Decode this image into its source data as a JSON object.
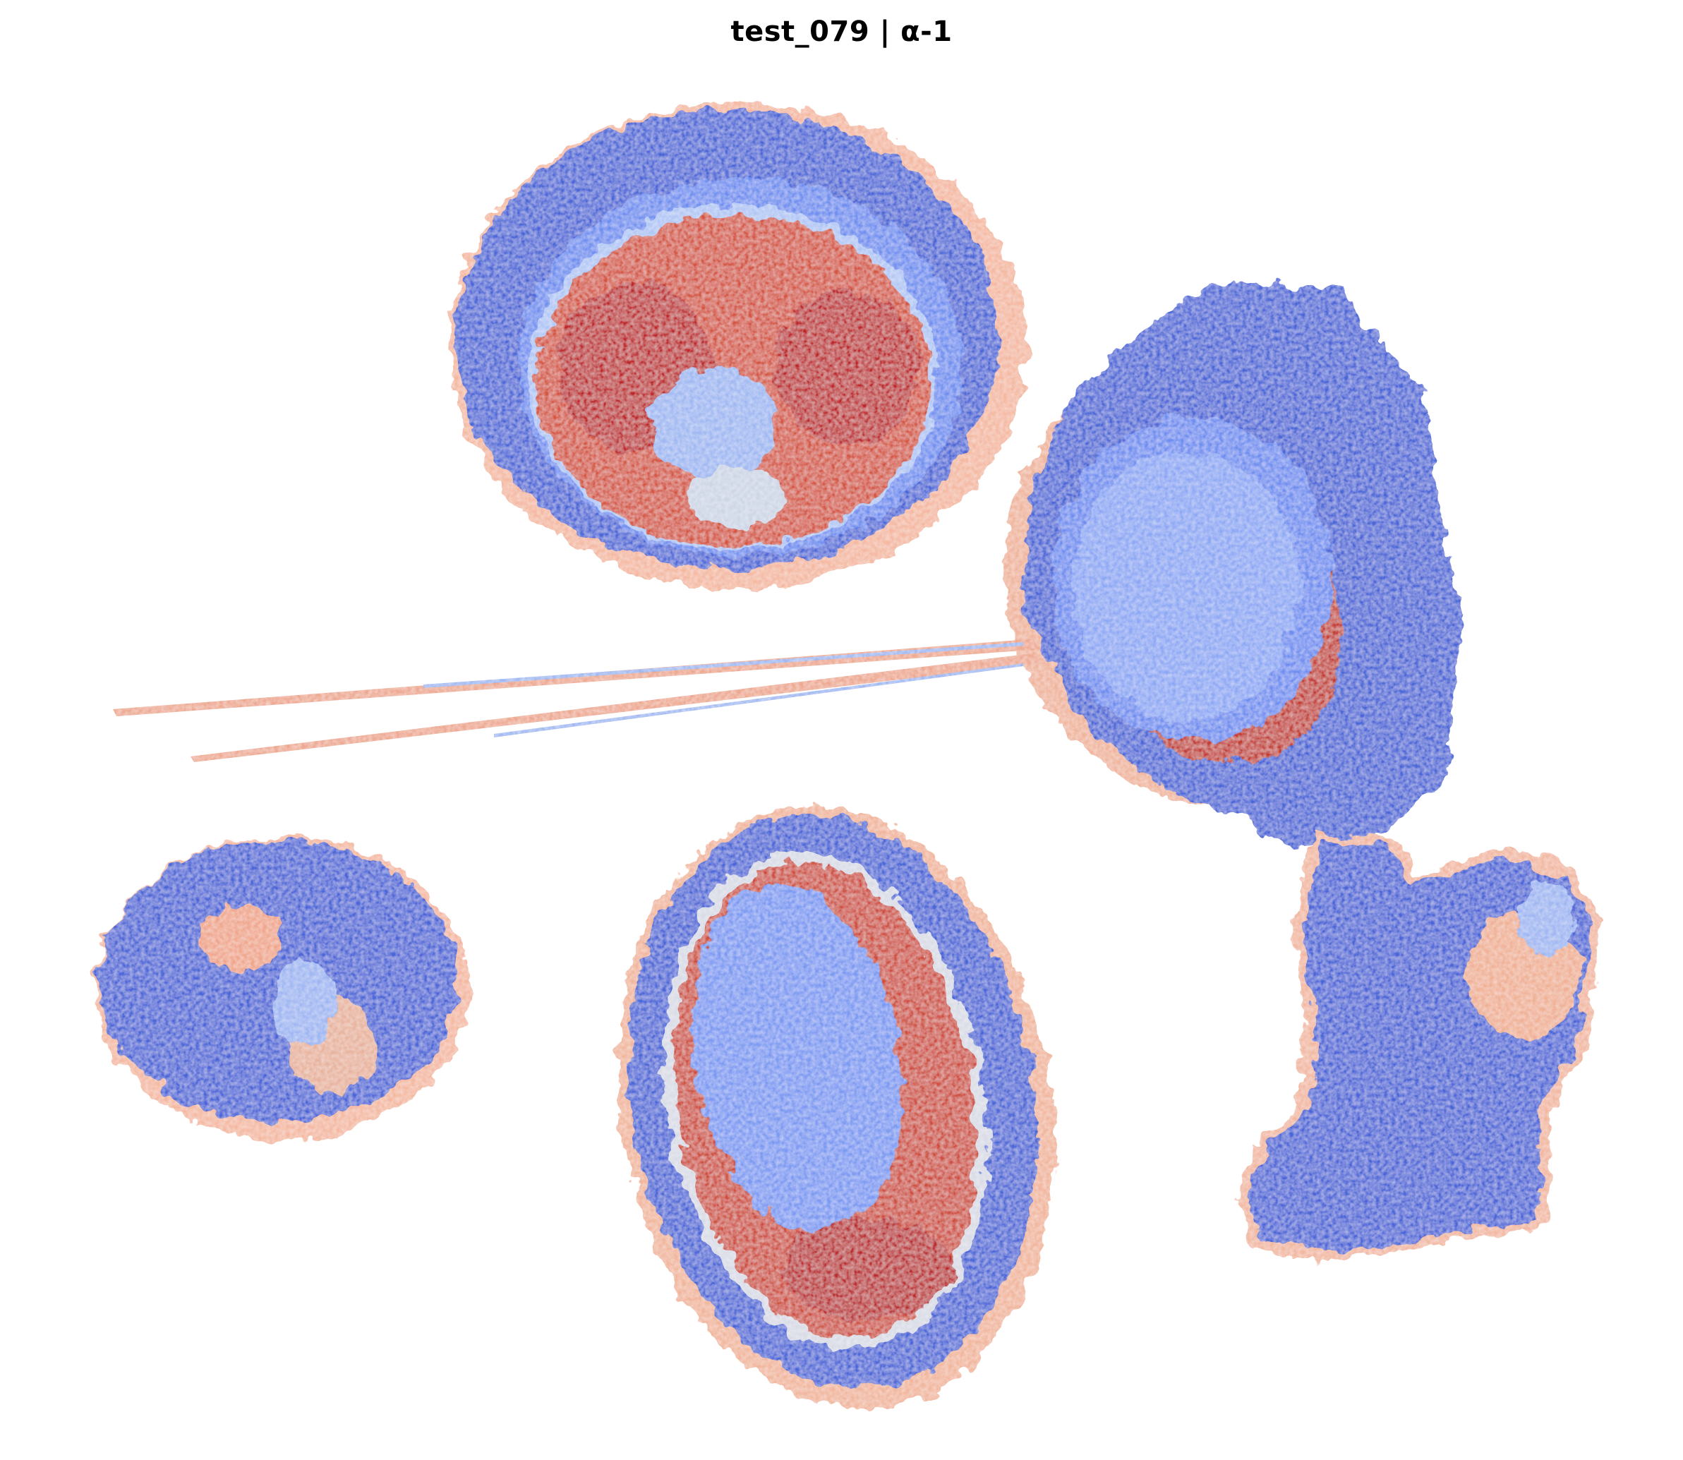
{
  "title": "test_079 | α-1",
  "colormap": {
    "name": "coolwarm",
    "low": "#3b4cc0",
    "mid": "#dddddd",
    "high": "#b40426"
  },
  "tissue_sections": [
    {
      "name": "kidney-section-top",
      "dominant_outer": "blue",
      "core": "red"
    },
    {
      "name": "kidney-section-right",
      "dominant_outer": "blue",
      "core": "blue",
      "band": "red"
    },
    {
      "name": "tissue-section-left",
      "dominant_outer": "blue",
      "accent": "light-red"
    },
    {
      "name": "kidney-section-bottom",
      "dominant_outer": "blue",
      "core": "blue",
      "band": "red"
    },
    {
      "name": "tissue-section-bottom-right",
      "dominant_outer": "blue",
      "accent": "light-red"
    },
    {
      "name": "tissue-strand-thin",
      "dominant_outer": "light-red"
    }
  ]
}
